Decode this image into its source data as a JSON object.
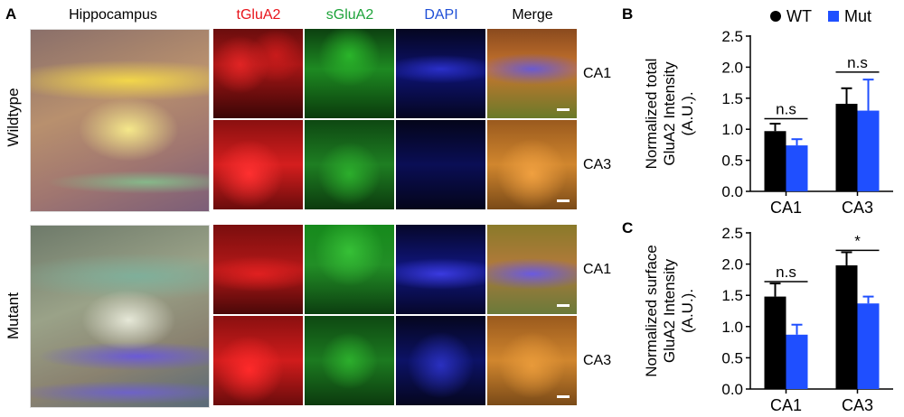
{
  "panel_labels": {
    "a": "A",
    "b": "B",
    "c": "C"
  },
  "micrograph": {
    "column_headers": [
      {
        "text": "Hippocampus",
        "color": "#000000"
      },
      {
        "text": "tGluA2",
        "color": "#e8141b"
      },
      {
        "text": "sGluA2",
        "color": "#1ea33a"
      },
      {
        "text": "DAPI",
        "color": "#1f4fd6"
      },
      {
        "text": "Merge",
        "color": "#000000"
      }
    ],
    "groups": [
      "Wildtype",
      "Mutant"
    ],
    "regions": [
      "CA1",
      "CA3"
    ],
    "channel_colors": {
      "red": "#d51a1a",
      "green": "#1f9a2a",
      "blue": "#1c25b8",
      "merge": "#c9762e"
    }
  },
  "chart_data": [
    {
      "type": "bar",
      "panel": "B",
      "categories": [
        "CA1",
        "CA3"
      ],
      "series": [
        {
          "name": "WT",
          "color": "#000000",
          "values": [
            0.97,
            1.41
          ],
          "errors": [
            0.12,
            0.25
          ]
        },
        {
          "name": "Mut",
          "color": "#1f4fff",
          "values": [
            0.74,
            1.3
          ],
          "errors": [
            0.1,
            0.5
          ]
        }
      ],
      "ylabel_lines": [
        "Normalized total",
        "GluA2 Intensity",
        "(A.U.)."
      ],
      "ylim": [
        0,
        2.5
      ],
      "yticks": [
        "0.0",
        "0.5",
        "1.0",
        "1.5",
        "2.0",
        "2.5"
      ],
      "annotations": [
        {
          "category": "CA1",
          "text": "n.s",
          "y": 1.17
        },
        {
          "category": "CA3",
          "text": "n.s",
          "y": 1.92
        }
      ],
      "legend": {
        "position": "top",
        "entries": [
          {
            "text": "WT",
            "marker": "circle"
          },
          {
            "text": "Mut",
            "marker": "square"
          }
        ]
      }
    },
    {
      "type": "bar",
      "panel": "C",
      "categories": [
        "CA1",
        "CA3"
      ],
      "series": [
        {
          "name": "WT",
          "color": "#000000",
          "values": [
            1.48,
            1.98
          ],
          "errors": [
            0.21,
            0.21
          ]
        },
        {
          "name": "Mut",
          "color": "#1f4fff",
          "values": [
            0.87,
            1.37
          ],
          "errors": [
            0.16,
            0.11
          ]
        }
      ],
      "ylabel_lines": [
        "Normalized surface",
        "GluA2 Intensity",
        "(A.U.)."
      ],
      "ylim": [
        0,
        2.5
      ],
      "yticks": [
        "0.0",
        "0.5",
        "1.0",
        "1.5",
        "2.0",
        "2.5"
      ],
      "annotations": [
        {
          "category": "CA1",
          "text": "n.s",
          "y": 1.72
        },
        {
          "category": "CA3",
          "text": "*",
          "y": 2.22
        }
      ]
    }
  ]
}
